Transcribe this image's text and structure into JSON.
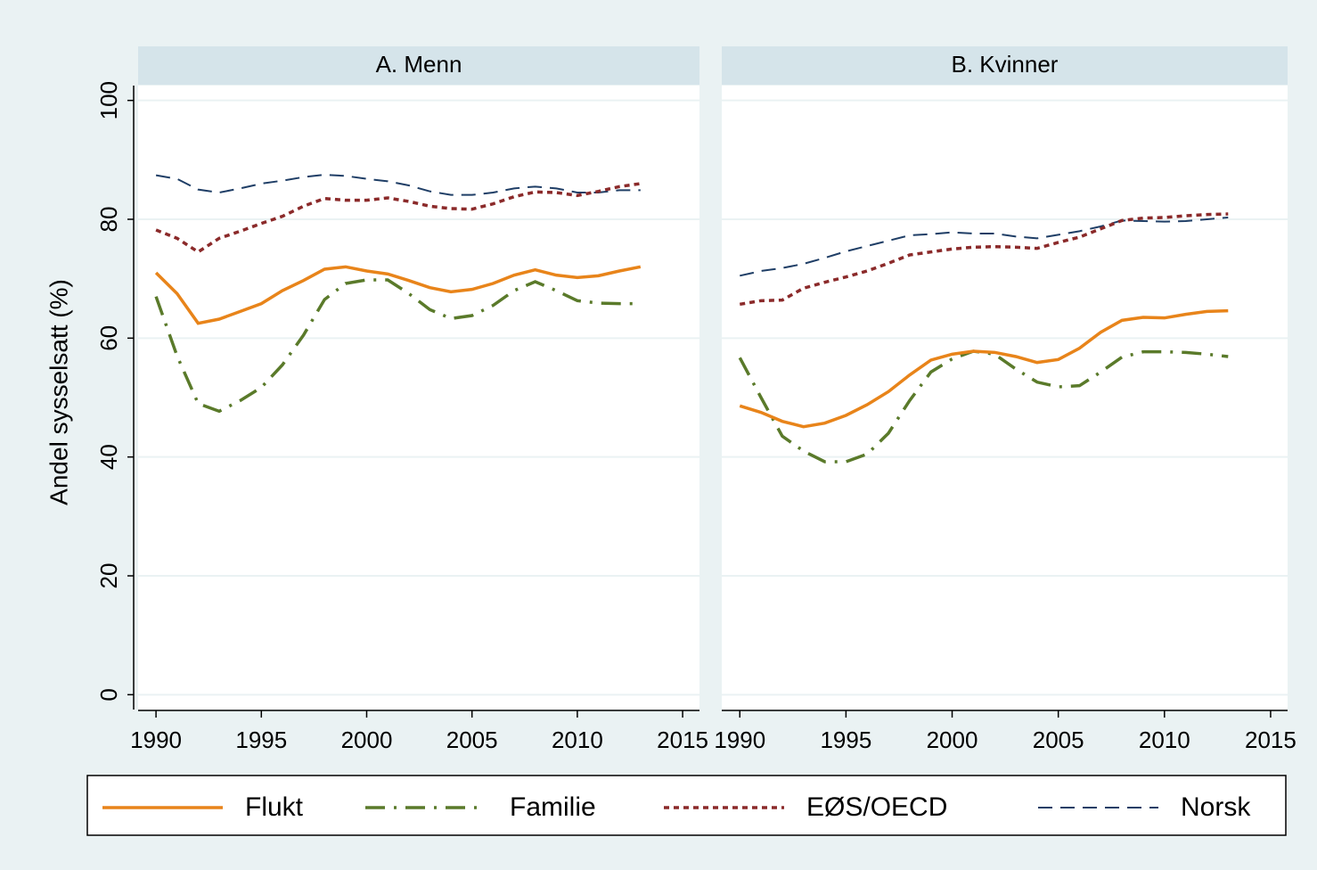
{
  "chart_data": {
    "type": "line",
    "y_label": "Andel sysselsatt (%)",
    "ylim": [
      -2.5,
      102.5
    ],
    "yticks": [
      0,
      20,
      40,
      60,
      80,
      100
    ],
    "xlim": [
      1989.15,
      2015.8
    ],
    "xticks": [
      1990,
      1995,
      2000,
      2005,
      2010,
      2015
    ],
    "grid": true,
    "legend": "bottom",
    "x": [
      1990,
      1991,
      1992,
      1993,
      1994,
      1995,
      1996,
      1997,
      1998,
      1999,
      2000,
      2001,
      2002,
      2003,
      2004,
      2005,
      2006,
      2007,
      2008,
      2009,
      2010,
      2011,
      2012,
      2013
    ],
    "series": [
      {
        "name": "Flukt",
        "color": "#e8841a",
        "style": "solid"
      },
      {
        "name": "Familie",
        "color": "#5a7a2a",
        "style": "dash-dot"
      },
      {
        "name": "EØS/OECD",
        "color": "#8b2a2a",
        "style": "dot"
      },
      {
        "name": "Norsk",
        "color": "#1f3e66",
        "style": "dash"
      }
    ],
    "panels": [
      {
        "title": "A. Menn",
        "values": [
          [
            71,
            67.5,
            62.5,
            63.2,
            64.5,
            65.8,
            68,
            69.7,
            71.6,
            72,
            71.3,
            70.8,
            69.7,
            68.5,
            67.8,
            68.2,
            69.2,
            70.6,
            71.5,
            70.6,
            70.2,
            70.5,
            71.3,
            72
          ],
          [
            67,
            57,
            49,
            47.7,
            49.5,
            51.7,
            55.5,
            60.5,
            66.5,
            69.2,
            69.8,
            69.8,
            67.5,
            64.8,
            63.3,
            63.8,
            65.5,
            68,
            69.5,
            68,
            66.3,
            65.9,
            65.8,
            65.8
          ],
          [
            78.2,
            76.8,
            74.5,
            76.8,
            78,
            79.3,
            80.5,
            82.2,
            83.5,
            83.2,
            83.2,
            83.6,
            83,
            82.2,
            81.8,
            81.7,
            82.6,
            83.8,
            84.6,
            84.5,
            84,
            84.7,
            85.5,
            86
          ],
          [
            87.4,
            86.8,
            85,
            84.5,
            85.2,
            86,
            86.5,
            87.1,
            87.5,
            87.3,
            86.8,
            86.4,
            85.7,
            84.7,
            84.1,
            84.1,
            84.5,
            85.2,
            85.5,
            85.2,
            84.5,
            84.5,
            84.9,
            84.9
          ]
        ]
      },
      {
        "title": "B. Kvinner",
        "values": [
          [
            48.6,
            47.5,
            46,
            45.1,
            45.7,
            47,
            48.8,
            51,
            53.8,
            56.3,
            57.3,
            57.8,
            57.6,
            56.9,
            55.9,
            56.4,
            58.3,
            61,
            63,
            63.5,
            63.4,
            64,
            64.5,
            64.6
          ],
          [
            56.7,
            50,
            43.5,
            41,
            39.2,
            39.2,
            40.5,
            44,
            49.5,
            54.3,
            56.5,
            57.8,
            57.3,
            54.8,
            52.6,
            51.8,
            52,
            54.3,
            56.8,
            57.7,
            57.7,
            57.6,
            57.3,
            56.9
          ],
          [
            65.7,
            66.3,
            66.4,
            68.4,
            69.4,
            70.3,
            71.3,
            72.6,
            74,
            74.5,
            75,
            75.3,
            75.4,
            75.3,
            75.1,
            76.1,
            77,
            78.4,
            79.8,
            80.2,
            80.3,
            80.6,
            80.8,
            80.9
          ],
          [
            70.5,
            71.3,
            71.8,
            72.5,
            73.5,
            74.6,
            75.5,
            76.4,
            77.3,
            77.5,
            77.8,
            77.6,
            77.6,
            77.1,
            76.8,
            77.4,
            78,
            78.8,
            79.8,
            79.7,
            79.6,
            79.7,
            80,
            80.3
          ]
        ]
      }
    ]
  }
}
